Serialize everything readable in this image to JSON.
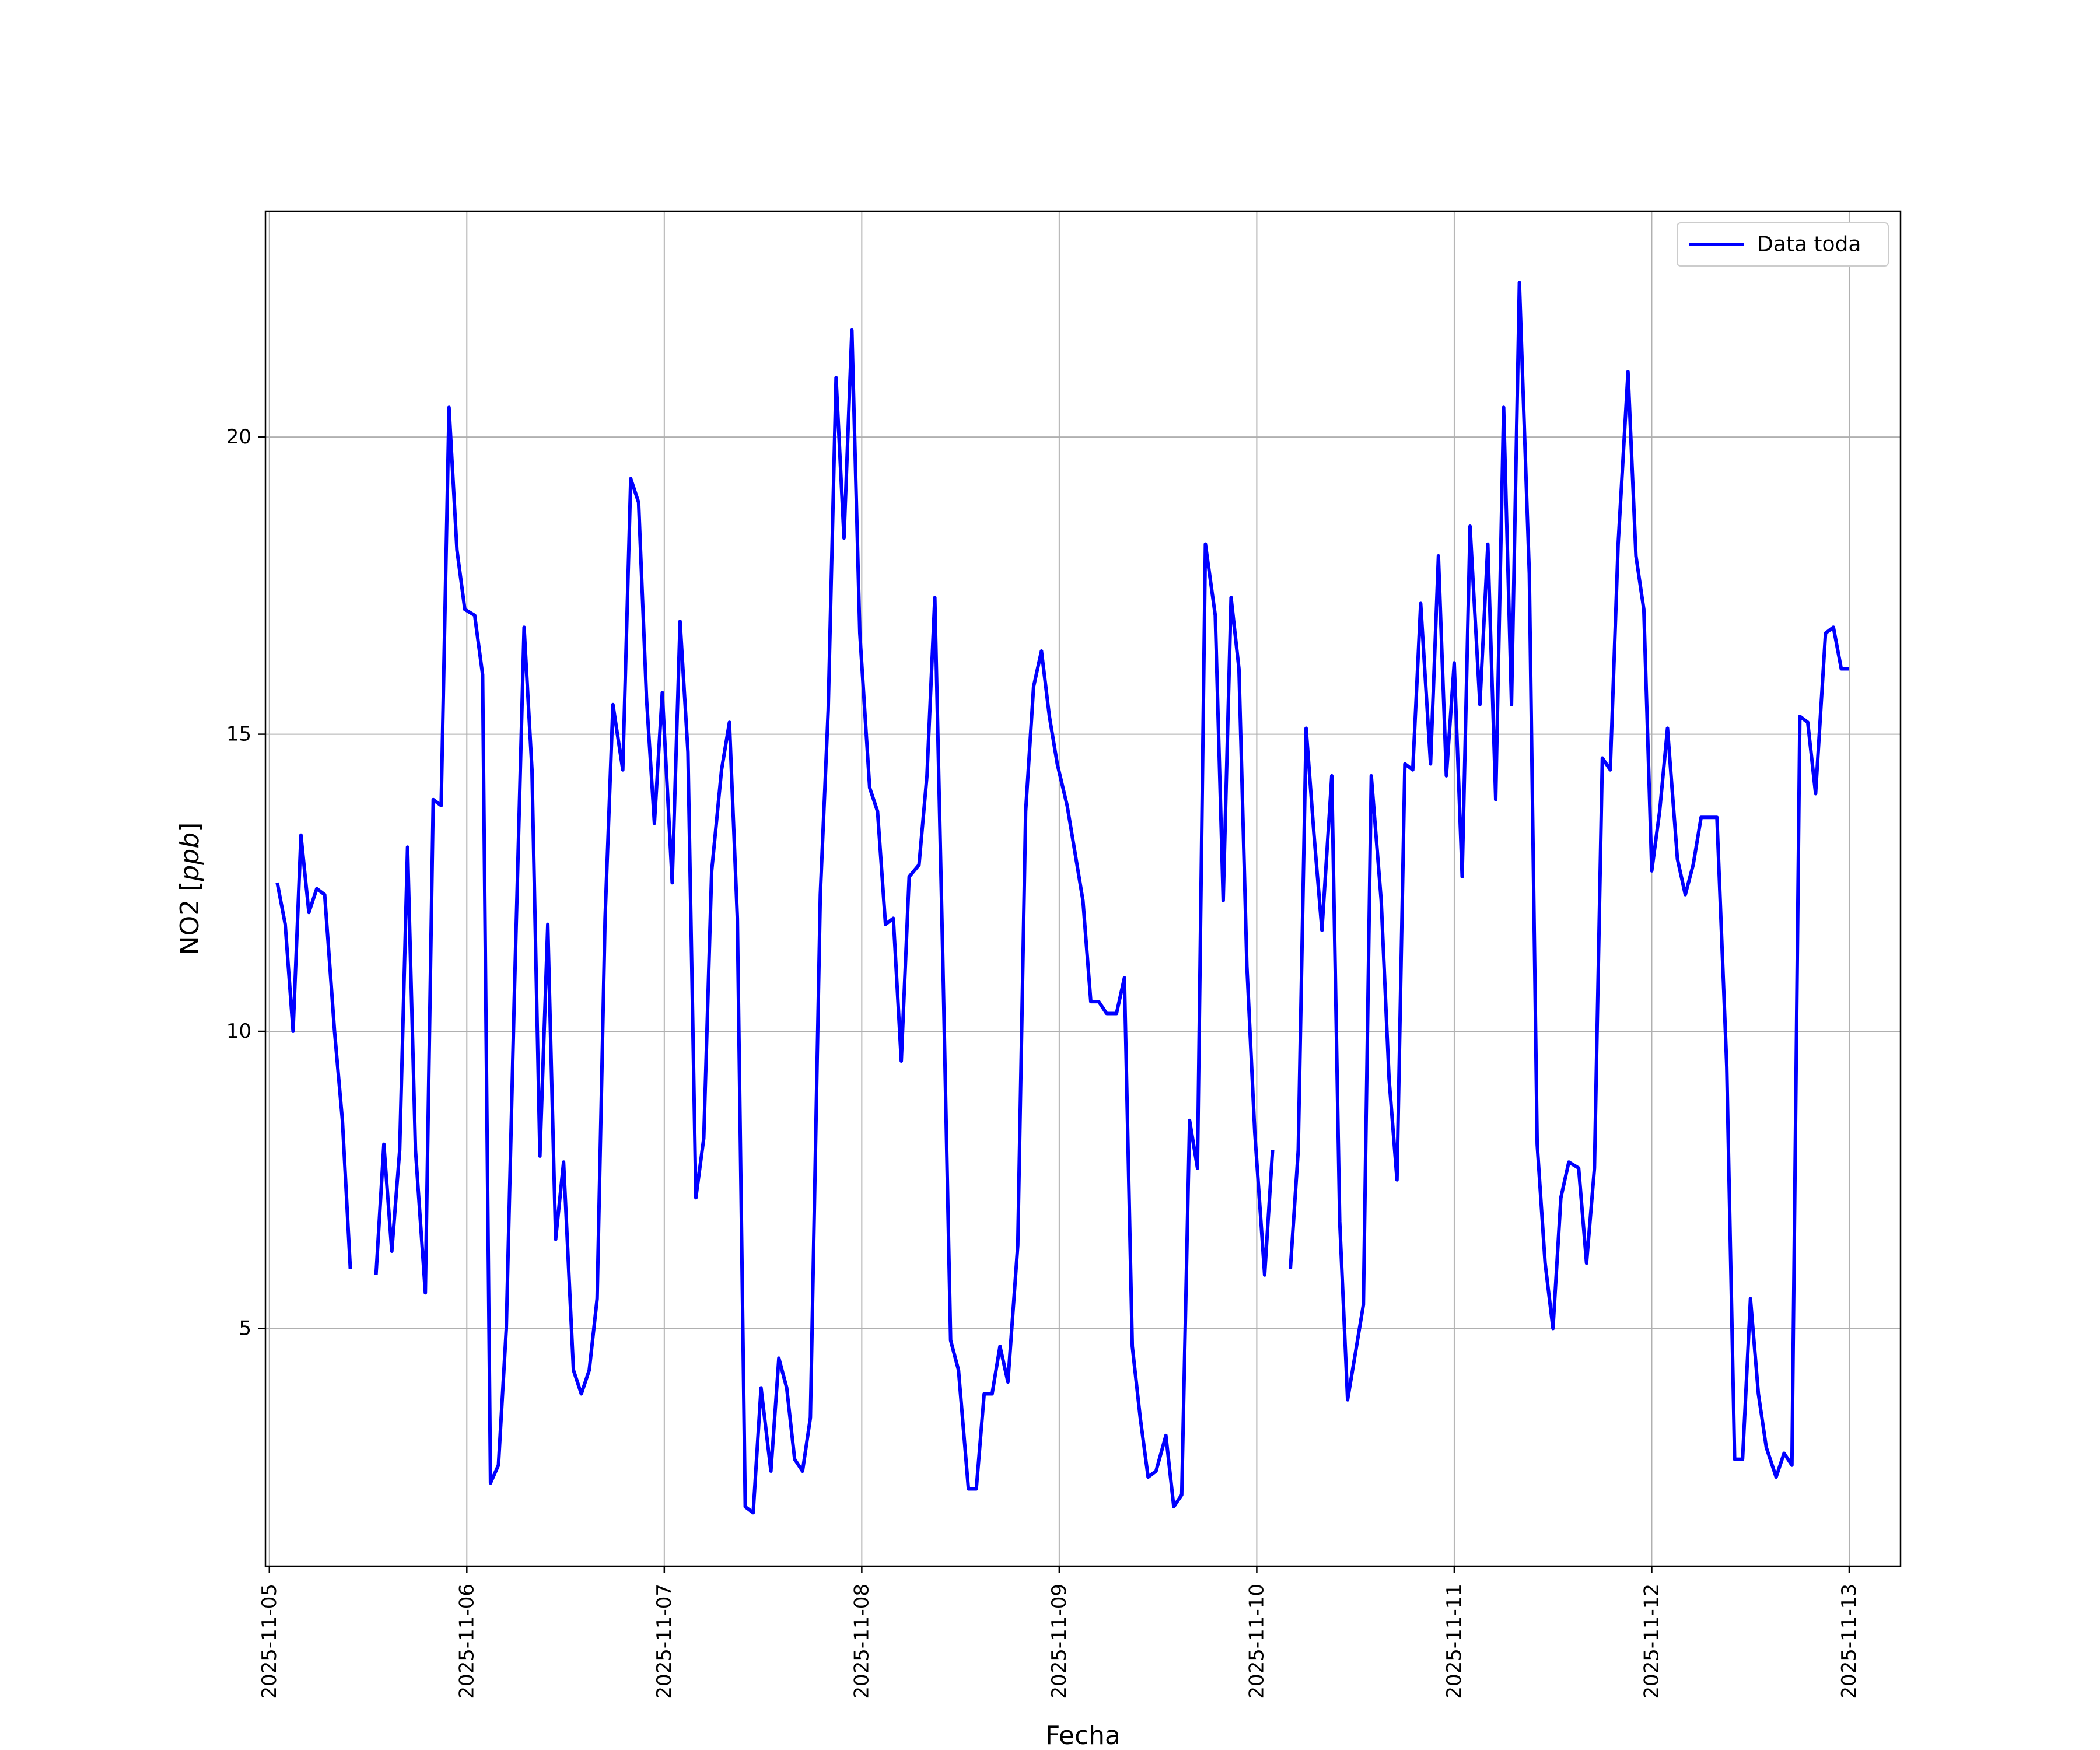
{
  "chart_data": {
    "type": "line",
    "title": "",
    "xlabel": "Fecha",
    "ylabel": "NO2 [ppb]",
    "ylabel_parts": {
      "text": "NO2 [",
      "italic": "ppb",
      "close": "]"
    },
    "xlim": [
      -0.02,
      8.26
    ],
    "ylim": [
      1.0,
      23.8
    ],
    "grid": true,
    "legend": {
      "placement": "top-right"
    },
    "x_ticks": [
      {
        "value": 0,
        "label": "2025-11-05"
      },
      {
        "value": 1,
        "label": "2025-11-06"
      },
      {
        "value": 2,
        "label": "2025-11-07"
      },
      {
        "value": 3,
        "label": "2025-11-08"
      },
      {
        "value": 4,
        "label": "2025-11-09"
      },
      {
        "value": 5,
        "label": "2025-11-10"
      },
      {
        "value": 6,
        "label": "2025-11-11"
      },
      {
        "value": 7,
        "label": "2025-11-12"
      },
      {
        "value": 8,
        "label": "2025-11-13"
      }
    ],
    "y_ticks": [
      {
        "value": 5,
        "label": "5"
      },
      {
        "value": 10,
        "label": "10"
      },
      {
        "value": 15,
        "label": "15"
      },
      {
        "value": 20,
        "label": "20"
      }
    ],
    "series": [
      {
        "name": "Data toda",
        "color": "#0000ff",
        "segments": [
          [
            [
              0.04,
              12.5
            ],
            [
              0.08,
              11.8
            ],
            [
              0.12,
              10.0
            ],
            [
              0.16,
              13.3
            ],
            [
              0.2,
              12.0
            ],
            [
              0.24,
              12.4
            ],
            [
              0.28,
              12.3
            ],
            [
              0.33,
              10.0
            ],
            [
              0.37,
              8.5
            ],
            [
              0.41,
              6.0
            ]
          ],
          [
            [
              0.54,
              5.9
            ],
            [
              0.58,
              8.1
            ],
            [
              0.62,
              6.3
            ],
            [
              0.66,
              8.0
            ],
            [
              0.7,
              13.1
            ],
            [
              0.74,
              8.0
            ],
            [
              0.79,
              5.6
            ],
            [
              0.83,
              13.9
            ],
            [
              0.87,
              13.8
            ],
            [
              0.91,
              20.5
            ],
            [
              0.95,
              18.1
            ],
            [
              0.99,
              17.1
            ],
            [
              1.04,
              17.0
            ],
            [
              1.08,
              16.0
            ],
            [
              1.12,
              2.4
            ],
            [
              1.16,
              2.7
            ],
            [
              1.2,
              5.0
            ],
            [
              1.24,
              10.5
            ],
            [
              1.29,
              16.8
            ],
            [
              1.33,
              14.4
            ],
            [
              1.37,
              7.9
            ],
            [
              1.41,
              11.8
            ],
            [
              1.45,
              6.5
            ],
            [
              1.49,
              7.8
            ],
            [
              1.54,
              4.3
            ],
            [
              1.58,
              3.9
            ],
            [
              1.62,
              4.3
            ],
            [
              1.66,
              5.5
            ],
            [
              1.7,
              11.9
            ],
            [
              1.74,
              15.5
            ],
            [
              1.79,
              14.4
            ],
            [
              1.83,
              19.3
            ],
            [
              1.87,
              18.9
            ],
            [
              1.91,
              15.6
            ],
            [
              1.95,
              13.5
            ],
            [
              1.99,
              15.7
            ],
            [
              2.04,
              12.5
            ],
            [
              2.08,
              16.9
            ],
            [
              2.12,
              14.7
            ],
            [
              2.16,
              7.2
            ],
            [
              2.2,
              8.2
            ],
            [
              2.24,
              12.7
            ],
            [
              2.29,
              14.4
            ],
            [
              2.33,
              15.2
            ],
            [
              2.37,
              11.9
            ],
            [
              2.41,
              2.0
            ],
            [
              2.45,
              1.9
            ],
            [
              2.49,
              4.0
            ],
            [
              2.54,
              2.6
            ],
            [
              2.58,
              4.5
            ],
            [
              2.62,
              4.0
            ],
            [
              2.66,
              2.8
            ],
            [
              2.7,
              2.6
            ],
            [
              2.74,
              3.5
            ],
            [
              2.79,
              12.3
            ],
            [
              2.83,
              15.4
            ],
            [
              2.87,
              21.0
            ],
            [
              2.91,
              18.3
            ],
            [
              2.95,
              21.8
            ],
            [
              2.99,
              16.7
            ],
            [
              3.04,
              14.1
            ],
            [
              3.08,
              13.7
            ],
            [
              3.12,
              11.8
            ],
            [
              3.16,
              11.9
            ],
            [
              3.2,
              9.5
            ],
            [
              3.24,
              12.6
            ],
            [
              3.29,
              12.8
            ],
            [
              3.33,
              14.3
            ],
            [
              3.37,
              17.3
            ],
            [
              3.41,
              11.3
            ],
            [
              3.45,
              4.8
            ],
            [
              3.49,
              4.3
            ],
            [
              3.54,
              2.3
            ],
            [
              3.58,
              2.3
            ],
            [
              3.62,
              3.9
            ],
            [
              3.66,
              3.9
            ],
            [
              3.7,
              4.7
            ],
            [
              3.74,
              4.1
            ],
            [
              3.79,
              6.4
            ],
            [
              3.83,
              13.7
            ],
            [
              3.87,
              15.8
            ],
            [
              3.91,
              16.4
            ],
            [
              3.95,
              15.3
            ],
            [
              3.99,
              14.5
            ],
            [
              4.04,
              13.8
            ],
            [
              4.08,
              13.0
            ],
            [
              4.12,
              12.2
            ],
            [
              4.16,
              10.5
            ],
            [
              4.2,
              10.5
            ],
            [
              4.24,
              10.3
            ],
            [
              4.29,
              10.3
            ],
            [
              4.33,
              10.9
            ],
            [
              4.37,
              4.7
            ],
            [
              4.41,
              3.5
            ],
            [
              4.45,
              2.5
            ],
            [
              4.49,
              2.6
            ],
            [
              4.54,
              3.2
            ],
            [
              4.58,
              2.0
            ],
            [
              4.62,
              2.2
            ],
            [
              4.66,
              8.5
            ],
            [
              4.7,
              7.7
            ],
            [
              4.74,
              18.2
            ],
            [
              4.79,
              17.0
            ],
            [
              4.83,
              12.2
            ],
            [
              4.87,
              17.3
            ],
            [
              4.91,
              16.1
            ],
            [
              4.95,
              11.1
            ],
            [
              4.99,
              8.3
            ],
            [
              5.04,
              5.9
            ],
            [
              5.08,
              8.0
            ]
          ],
          [
            [
              5.17,
              6.0
            ],
            [
              5.21,
              8.0
            ],
            [
              5.25,
              15.1
            ],
            [
              5.29,
              13.3
            ],
            [
              5.33,
              11.7
            ],
            [
              5.38,
              14.3
            ],
            [
              5.42,
              6.8
            ],
            [
              5.46,
              3.8
            ],
            [
              5.5,
              4.6
            ],
            [
              5.54,
              5.4
            ],
            [
              5.58,
              14.3
            ],
            [
              5.63,
              12.2
            ],
            [
              5.67,
              9.2
            ],
            [
              5.71,
              7.5
            ],
            [
              5.75,
              14.5
            ],
            [
              5.79,
              14.4
            ],
            [
              5.83,
              17.2
            ],
            [
              5.88,
              14.5
            ],
            [
              5.92,
              18.0
            ],
            [
              5.96,
              14.3
            ],
            [
              6.0,
              16.2
            ],
            [
              6.04,
              12.6
            ],
            [
              6.08,
              18.5
            ],
            [
              6.13,
              15.5
            ],
            [
              6.17,
              18.2
            ],
            [
              6.21,
              13.9
            ],
            [
              6.25,
              20.5
            ],
            [
              6.29,
              15.5
            ],
            [
              6.33,
              22.6
            ],
            [
              6.38,
              17.7
            ],
            [
              6.42,
              8.1
            ],
            [
              6.46,
              6.1
            ],
            [
              6.5,
              5.0
            ],
            [
              6.54,
              7.2
            ],
            [
              6.58,
              7.8
            ],
            [
              6.63,
              7.7
            ],
            [
              6.67,
              6.1
            ],
            [
              6.71,
              7.7
            ],
            [
              6.75,
              14.6
            ],
            [
              6.79,
              14.4
            ],
            [
              6.83,
              18.2
            ],
            [
              6.88,
              21.1
            ],
            [
              6.92,
              18.0
            ],
            [
              6.96,
              17.1
            ],
            [
              7.0,
              12.7
            ],
            [
              7.04,
              13.7
            ],
            [
              7.08,
              15.1
            ],
            [
              7.13,
              12.9
            ],
            [
              7.17,
              12.3
            ],
            [
              7.21,
              12.8
            ],
            [
              7.25,
              13.6
            ],
            [
              7.29,
              13.6
            ],
            [
              7.33,
              13.6
            ],
            [
              7.38,
              9.4
            ],
            [
              7.42,
              2.8
            ],
            [
              7.46,
              2.8
            ],
            [
              7.5,
              5.5
            ],
            [
              7.54,
              3.9
            ],
            [
              7.58,
              3.0
            ],
            [
              7.63,
              2.5
            ],
            [
              7.67,
              2.9
            ],
            [
              7.71,
              2.7
            ],
            [
              7.75,
              15.3
            ],
            [
              7.79,
              15.2
            ],
            [
              7.83,
              14.0
            ],
            [
              7.88,
              16.7
            ],
            [
              7.92,
              16.8
            ],
            [
              7.96,
              16.1
            ],
            [
              8.0,
              16.1
            ]
          ]
        ]
      }
    ]
  }
}
